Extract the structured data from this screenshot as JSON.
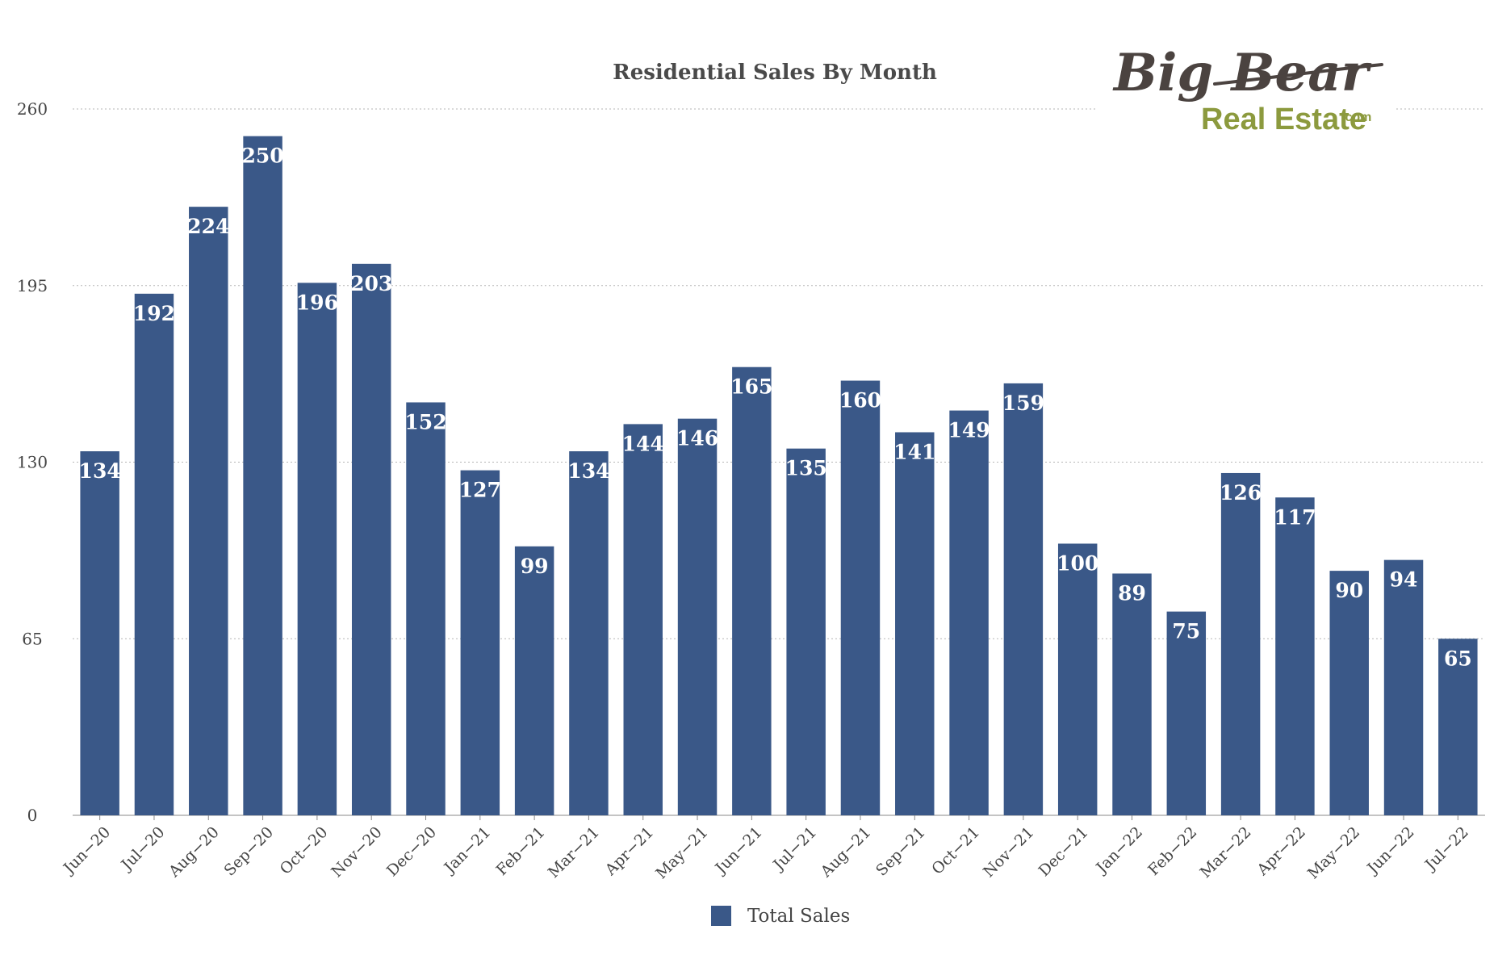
{
  "logo": {
    "line1": "Big Bear",
    "line2": "Real Estate",
    "suffix": ".com"
  },
  "colors": {
    "bar": "#3a5888",
    "grid": "#b5b5b5",
    "axis": "#888888",
    "logo_dark": "#4b4340",
    "logo_green": "#8c9a3e"
  },
  "chart_data": {
    "type": "bar",
    "title": "Residential Sales By Month",
    "xlabel": "",
    "ylabel": "",
    "ylim": [
      0,
      260
    ],
    "yticks": [
      0,
      65,
      130,
      195,
      260
    ],
    "grid": true,
    "legend_position": "bottom",
    "categories": [
      "Jun−20",
      "Jul−20",
      "Aug−20",
      "Sep−20",
      "Oct−20",
      "Nov−20",
      "Dec−20",
      "Jan−21",
      "Feb−21",
      "Mar−21",
      "Apr−21",
      "May−21",
      "Jun−21",
      "Jul−21",
      "Aug−21",
      "Sep−21",
      "Oct−21",
      "Nov−21",
      "Dec−21",
      "Jan−22",
      "Feb−22",
      "Mar−22",
      "Apr−22",
      "May−22",
      "Jun−22",
      "Jul−22"
    ],
    "series": [
      {
        "name": "Total Sales",
        "values": [
          134,
          192,
          224,
          250,
          196,
          203,
          152,
          127,
          99,
          134,
          144,
          146,
          165,
          135,
          160,
          141,
          149,
          159,
          100,
          89,
          75,
          126,
          117,
          90,
          94,
          65
        ]
      }
    ]
  }
}
